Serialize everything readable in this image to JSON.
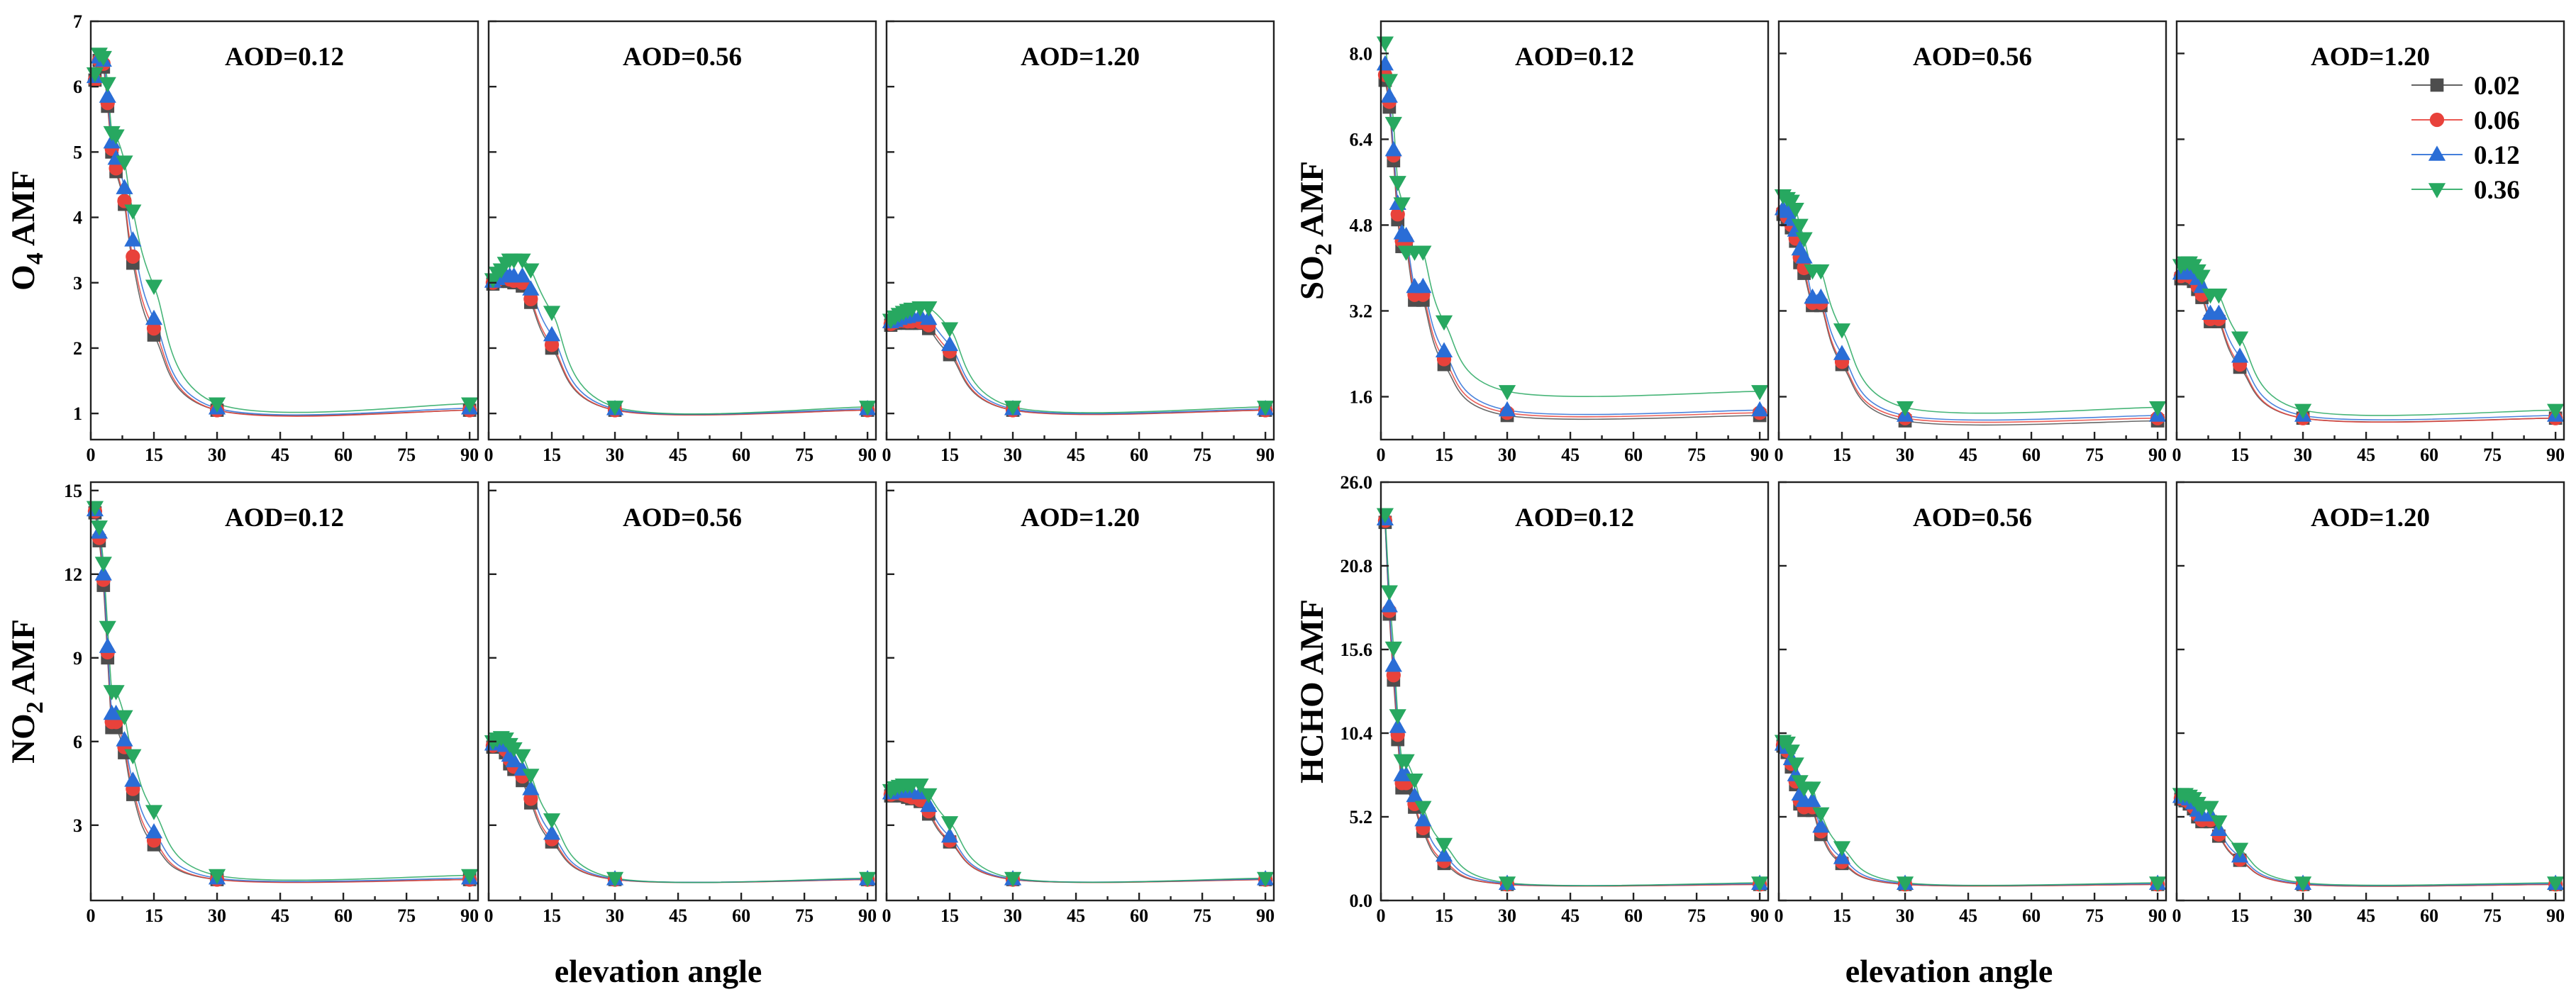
{
  "chart_data": {
    "type": "scatter",
    "x_ticks": [
      0,
      15,
      30,
      45,
      60,
      75,
      90
    ],
    "x_tick_labels": [
      "0",
      "15",
      "30",
      "45",
      "60",
      "75",
      "90"
    ],
    "xlabel": "elevation angle",
    "xlim": [
      0,
      92
    ],
    "elevation_angles": [
      1,
      2,
      3,
      4,
      5,
      6,
      8,
      10,
      15,
      30,
      90
    ],
    "legend": [
      {
        "name": "0.02",
        "color": "#4d4d4d",
        "marker": "square"
      },
      {
        "name": "0.06",
        "color": "#e8423b",
        "marker": "circle"
      },
      {
        "name": "0.12",
        "color": "#2a6dd6",
        "marker": "triangle-up"
      },
      {
        "name": "0.36",
        "color": "#27a860",
        "marker": "triangle-down"
      }
    ],
    "groups": [
      {
        "gas": "O4",
        "ylabel_main": "O",
        "ylabel_sub": "4",
        "ylabel_rest": " AMF",
        "ylim": [
          0.6,
          7
        ],
        "y_ticks": [
          1,
          2,
          3,
          4,
          5,
          6,
          7
        ],
        "y_tick_labels": [
          "1",
          "2",
          "3",
          "4",
          "5",
          "6",
          "7"
        ],
        "panels": [
          {
            "title": "AOD=0.12",
            "series": [
              [
                6.1,
                6.4,
                6.3,
                5.7,
                5.0,
                4.7,
                4.2,
                3.3,
                2.2,
                1.05,
                1.05
              ],
              [
                6.1,
                6.4,
                6.35,
                5.75,
                5.05,
                4.75,
                4.25,
                3.4,
                2.3,
                1.05,
                1.05
              ],
              [
                6.15,
                6.45,
                6.4,
                5.85,
                5.15,
                4.9,
                4.45,
                3.65,
                2.45,
                1.08,
                1.08
              ],
              [
                6.2,
                6.5,
                6.45,
                6.05,
                5.3,
                5.25,
                4.85,
                4.1,
                2.95,
                1.15,
                1.15
              ]
            ]
          },
          {
            "title": "AOD=0.56",
            "series": [
              [
                2.98,
                3.02,
                3.05,
                3.05,
                3.02,
                3.0,
                2.95,
                2.7,
                2.0,
                1.05,
                1.05
              ],
              [
                3.0,
                3.04,
                3.08,
                3.08,
                3.05,
                3.03,
                3.0,
                2.75,
                2.05,
                1.05,
                1.05
              ],
              [
                3.02,
                3.06,
                3.1,
                3.12,
                3.1,
                3.1,
                3.1,
                2.9,
                2.2,
                1.07,
                1.07
              ],
              [
                3.05,
                3.15,
                3.2,
                3.3,
                3.35,
                3.35,
                3.35,
                3.2,
                2.55,
                1.1,
                1.1
              ]
            ]
          },
          {
            "title": "AOD=1.20",
            "series": [
              [
                2.35,
                2.38,
                2.4,
                2.4,
                2.38,
                2.38,
                2.38,
                2.3,
                1.9,
                1.05,
                1.05
              ],
              [
                2.37,
                2.4,
                2.42,
                2.42,
                2.41,
                2.41,
                2.4,
                2.35,
                1.95,
                1.05,
                1.05
              ],
              [
                2.4,
                2.42,
                2.45,
                2.47,
                2.48,
                2.5,
                2.5,
                2.45,
                2.05,
                1.07,
                1.07
              ],
              [
                2.43,
                2.48,
                2.52,
                2.55,
                2.58,
                2.6,
                2.62,
                2.62,
                2.3,
                1.1,
                1.1
              ]
            ]
          }
        ]
      },
      {
        "gas": "SO2",
        "ylabel_main": "SO",
        "ylabel_sub": "2",
        "ylabel_rest": " AMF",
        "ylim": [
          0.8,
          8.6
        ],
        "y_ticks": [
          1.6,
          3.2,
          4.8,
          6.4,
          8.0
        ],
        "y_tick_labels": [
          "1.6",
          "3.2",
          "4.8",
          "6.4",
          "8.0"
        ],
        "panels": [
          {
            "title": "AOD=0.12",
            "series": [
              [
                7.5,
                7.0,
                6.0,
                4.9,
                4.4,
                4.4,
                3.4,
                3.4,
                2.2,
                1.25,
                1.25
              ],
              [
                7.6,
                7.1,
                6.1,
                5.0,
                4.5,
                4.5,
                3.5,
                3.5,
                2.3,
                1.3,
                1.3
              ],
              [
                7.8,
                7.2,
                6.2,
                5.2,
                4.65,
                4.6,
                3.65,
                3.65,
                2.45,
                1.35,
                1.35
              ],
              [
                8.2,
                7.5,
                6.7,
                5.6,
                5.2,
                4.3,
                4.3,
                4.3,
                3.0,
                1.7,
                1.7
              ]
            ]
          },
          {
            "title": "AOD=0.56",
            "series": [
              [
                5.0,
                4.9,
                4.75,
                4.5,
                4.1,
                3.9,
                3.3,
                3.3,
                2.2,
                1.15,
                1.15
              ],
              [
                5.05,
                4.95,
                4.8,
                4.55,
                4.2,
                4.0,
                3.35,
                3.35,
                2.25,
                1.2,
                1.2
              ],
              [
                5.1,
                5.05,
                4.9,
                4.7,
                4.35,
                4.2,
                3.45,
                3.45,
                2.4,
                1.25,
                1.25
              ],
              [
                5.35,
                5.3,
                5.25,
                5.1,
                4.8,
                4.55,
                3.95,
                3.95,
                2.85,
                1.4,
                1.4
              ]
            ]
          },
          {
            "title": "AOD=1.20",
            "series": [
              [
                3.8,
                3.85,
                3.8,
                3.75,
                3.6,
                3.45,
                3.0,
                3.0,
                2.15,
                1.2,
                1.2
              ],
              [
                3.85,
                3.9,
                3.85,
                3.8,
                3.65,
                3.5,
                3.05,
                3.05,
                2.2,
                1.2,
                1.2
              ],
              [
                3.9,
                3.95,
                3.95,
                3.9,
                3.8,
                3.65,
                3.15,
                3.15,
                2.35,
                1.25,
                1.25
              ],
              [
                4.05,
                4.1,
                4.1,
                4.05,
                3.95,
                3.85,
                3.5,
                3.5,
                2.7,
                1.35,
                1.35
              ]
            ]
          }
        ]
      },
      {
        "gas": "NO2",
        "ylabel_main": "NO",
        "ylabel_sub": "2",
        "ylabel_rest": " AMF",
        "ylim": [
          0.3,
          15.3
        ],
        "y_ticks": [
          3,
          6,
          9,
          12,
          15
        ],
        "y_tick_labels": [
          "3",
          "6",
          "9",
          "12",
          "15"
        ],
        "panels": [
          {
            "title": "AOD=0.12",
            "series": [
              [
                14.2,
                13.2,
                11.6,
                9.0,
                6.5,
                6.5,
                5.6,
                4.1,
                2.3,
                1.05,
                1.05
              ],
              [
                14.25,
                13.3,
                11.8,
                9.2,
                6.7,
                6.7,
                5.8,
                4.3,
                2.45,
                1.05,
                1.05
              ],
              [
                14.3,
                13.5,
                12.0,
                9.4,
                7.0,
                7.0,
                6.05,
                4.6,
                2.75,
                1.1,
                1.1
              ],
              [
                14.4,
                13.7,
                12.4,
                10.1,
                7.8,
                7.8,
                6.9,
                5.5,
                3.5,
                1.2,
                1.2
              ]
            ]
          },
          {
            "title": "AOD=0.56",
            "series": [
              [
                5.8,
                5.85,
                5.8,
                5.6,
                5.2,
                5.0,
                4.6,
                3.8,
                2.4,
                1.05,
                1.05
              ],
              [
                5.85,
                5.9,
                5.85,
                5.7,
                5.35,
                5.1,
                4.75,
                3.95,
                2.5,
                1.05,
                1.05
              ],
              [
                5.9,
                6.0,
                6.0,
                5.85,
                5.5,
                5.3,
                5.0,
                4.3,
                2.7,
                1.07,
                1.07
              ],
              [
                6.0,
                6.1,
                6.15,
                6.1,
                5.9,
                5.75,
                5.5,
                4.8,
                3.2,
                1.1,
                1.1
              ]
            ]
          },
          {
            "title": "AOD=1.20",
            "series": [
              [
                4.05,
                4.1,
                4.1,
                4.05,
                4.0,
                3.95,
                3.85,
                3.4,
                2.4,
                1.05,
                1.05
              ],
              [
                4.1,
                4.15,
                4.15,
                4.1,
                4.05,
                4.0,
                3.9,
                3.5,
                2.45,
                1.05,
                1.05
              ],
              [
                4.15,
                4.2,
                4.22,
                4.22,
                4.2,
                4.2,
                4.15,
                3.7,
                2.6,
                1.07,
                1.07
              ],
              [
                4.25,
                4.35,
                4.4,
                4.45,
                4.45,
                4.45,
                4.45,
                4.1,
                3.1,
                1.1,
                1.1
              ]
            ]
          }
        ]
      },
      {
        "gas": "HCHO",
        "ylabel_main": "HCHO",
        "ylabel_sub": "",
        "ylabel_rest": " AMF",
        "ylim": [
          0,
          26
        ],
        "y_ticks": [
          0.0,
          5.2,
          10.4,
          15.6,
          20.8,
          26.0
        ],
        "y_tick_labels": [
          "0.0",
          "5.2",
          "10.4",
          "15.6",
          "20.8",
          "26.0"
        ],
        "panels": [
          {
            "title": "AOD=0.12",
            "series": [
              [
                23.5,
                17.8,
                13.7,
                10.0,
                7.0,
                7.0,
                5.8,
                4.3,
                2.3,
                1.0,
                1.0
              ],
              [
                23.6,
                18.0,
                14.0,
                10.3,
                7.3,
                7.3,
                6.0,
                4.5,
                2.45,
                1.0,
                1.0
              ],
              [
                23.7,
                18.3,
                14.6,
                10.8,
                7.8,
                7.8,
                6.5,
                5.0,
                2.8,
                1.05,
                1.05
              ],
              [
                24.0,
                19.2,
                15.7,
                11.5,
                8.7,
                8.7,
                7.5,
                5.8,
                3.5,
                1.1,
                1.1
              ]
            ]
          },
          {
            "title": "AOD=0.56",
            "series": [
              [
                9.6,
                9.2,
                8.3,
                7.2,
                6.0,
                5.6,
                5.6,
                4.1,
                2.3,
                1.0,
                1.0
              ],
              [
                9.65,
                9.3,
                8.5,
                7.4,
                6.2,
                5.8,
                5.8,
                4.3,
                2.4,
                1.0,
                1.0
              ],
              [
                9.7,
                9.5,
                8.8,
                7.8,
                6.6,
                6.2,
                6.2,
                4.6,
                2.65,
                1.05,
                1.05
              ],
              [
                9.9,
                9.8,
                9.3,
                8.5,
                7.4,
                7.0,
                7.0,
                5.4,
                3.3,
                1.1,
                1.1
              ]
            ]
          },
          {
            "title": "AOD=1.20",
            "series": [
              [
                6.3,
                6.2,
                6.0,
                5.7,
                5.2,
                4.9,
                4.9,
                4.0,
                2.5,
                1.0,
                1.0
              ],
              [
                6.35,
                6.25,
                6.1,
                5.8,
                5.3,
                5.0,
                5.0,
                4.1,
                2.55,
                1.0,
                1.0
              ],
              [
                6.45,
                6.4,
                6.3,
                6.05,
                5.6,
                5.3,
                5.3,
                4.4,
                2.75,
                1.05,
                1.05
              ],
              [
                6.6,
                6.6,
                6.5,
                6.35,
                6.05,
                5.8,
                5.8,
                4.9,
                3.2,
                1.1,
                1.1
              ]
            ]
          }
        ]
      }
    ]
  }
}
